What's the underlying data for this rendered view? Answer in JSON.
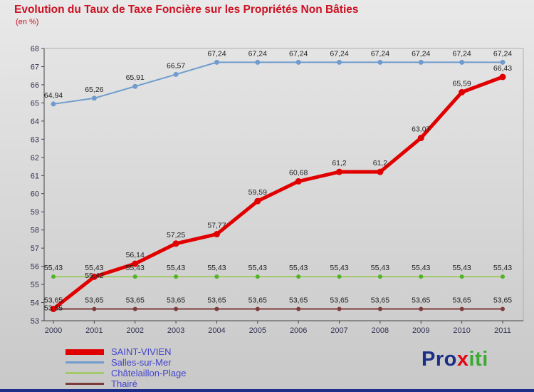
{
  "chart_data": {
    "type": "line",
    "title": "Evolution du Taux de Taxe Foncière sur les Propriétés Non Bâties",
    "subtitle": "(en %)",
    "x": [
      2000,
      2001,
      2002,
      2003,
      2004,
      2005,
      2006,
      2007,
      2008,
      2009,
      2010,
      2011
    ],
    "ylim": [
      53,
      68
    ],
    "yticks": [
      53,
      54,
      55,
      56,
      57,
      58,
      59,
      60,
      61,
      62,
      63,
      64,
      65,
      66,
      67,
      68
    ],
    "grid": false,
    "legend_position": "bottom-left",
    "decimal_separator": ",",
    "series": [
      {
        "name": "SAINT-VIVIEN",
        "color": "#e00000",
        "line_width": 5,
        "marker_radius": 4.5,
        "values": [
          53.65,
          55.42,
          56.14,
          57.25,
          57.77,
          59.59,
          60.68,
          61.2,
          61.2,
          63.07,
          65.59,
          66.43
        ]
      },
      {
        "name": "Salles-sur-Mer",
        "color": "#6f9ccd",
        "line_width": 2,
        "marker_radius": 3.5,
        "values": [
          64.94,
          65.26,
          65.91,
          66.57,
          67.24,
          67.24,
          67.24,
          67.24,
          67.24,
          67.24,
          67.24,
          67.24
        ]
      },
      {
        "name": "Châtelaillon-Plage",
        "color": "#a3c96a",
        "marker_color": "#53b22a",
        "line_width": 2,
        "marker_radius": 3,
        "values": [
          55.43,
          55.43,
          55.43,
          55.43,
          55.43,
          55.43,
          55.43,
          55.43,
          55.43,
          55.43,
          55.43,
          55.43
        ]
      },
      {
        "name": "Thairé",
        "color": "#7d3c3c",
        "line_width": 2,
        "marker_radius": 3,
        "values": [
          53.65,
          53.65,
          53.65,
          53.65,
          53.65,
          53.65,
          53.65,
          53.65,
          53.65,
          53.65,
          53.65,
          53.65
        ]
      }
    ]
  },
  "logo": {
    "text_parts": [
      {
        "text": "Pro",
        "color": "#1b2f8a"
      },
      {
        "text": "x",
        "color": "#e30613"
      },
      {
        "text": "iti",
        "color": "#3aaa35"
      }
    ]
  },
  "colors": {
    "title": "#cc1122",
    "legend_text": "#4343cc",
    "axis_text": "#333355",
    "data_label": "#222222",
    "bottom_bar": "#1b2f8a"
  }
}
